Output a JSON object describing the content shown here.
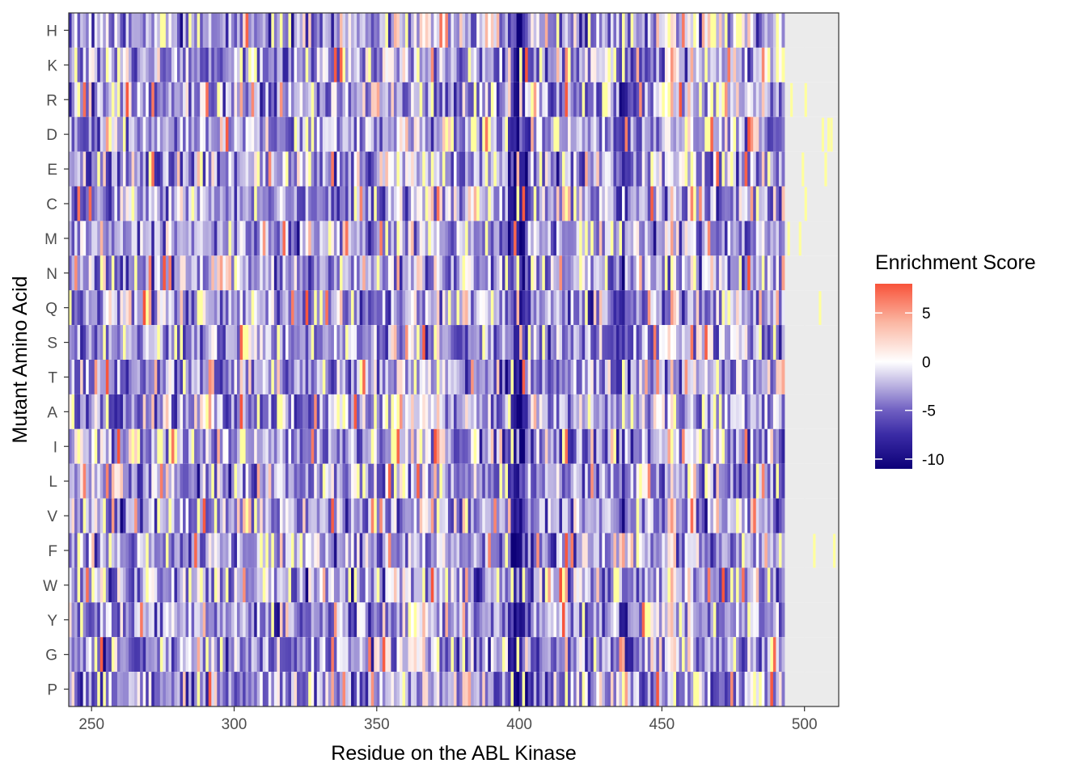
{
  "chart_data": {
    "type": "heatmap",
    "xlabel": "Residue on the ABL Kinase",
    "ylabel": "Mutant Amino Acid",
    "x_range": [
      242,
      512
    ],
    "x_ticks": [
      250,
      300,
      350,
      400,
      450,
      500
    ],
    "x_tick_labels": [
      "250",
      "300",
      "350",
      "400",
      "450",
      "500"
    ],
    "data_x_range": [
      242,
      493
    ],
    "y_categories": [
      "H",
      "K",
      "R",
      "D",
      "E",
      "C",
      "M",
      "N",
      "Q",
      "S",
      "T",
      "A",
      "I",
      "L",
      "V",
      "F",
      "W",
      "Y",
      "G",
      "P"
    ],
    "grid": true,
    "legend": {
      "title": "Enrichment Score",
      "position": "right",
      "ticks": [
        5,
        0,
        -5,
        -10
      ],
      "tick_labels": [
        "5",
        "0",
        "-5",
        "-10"
      ],
      "range": [
        -11,
        8
      ],
      "gradient": [
        {
          "value": -11,
          "color": "#0d0078"
        },
        {
          "value": -7.5,
          "color": "#3a2ba5"
        },
        {
          "value": -5,
          "color": "#6f5fc2"
        },
        {
          "value": -2.5,
          "color": "#b9b0e0"
        },
        {
          "value": 0,
          "color": "#ffffff"
        },
        {
          "value": 4,
          "color": "#fbb7a3"
        },
        {
          "value": 8,
          "color": "#f8533a"
        }
      ]
    },
    "missing_color": "#ffff9e",
    "na_region_color": "#ebebeb",
    "notes_values": "Per-residue enrichment scores spanning approx. -11 to 8; dense column-wise variation with strongly negative region near residues 395-405 and positive streaks near 450-465."
  }
}
